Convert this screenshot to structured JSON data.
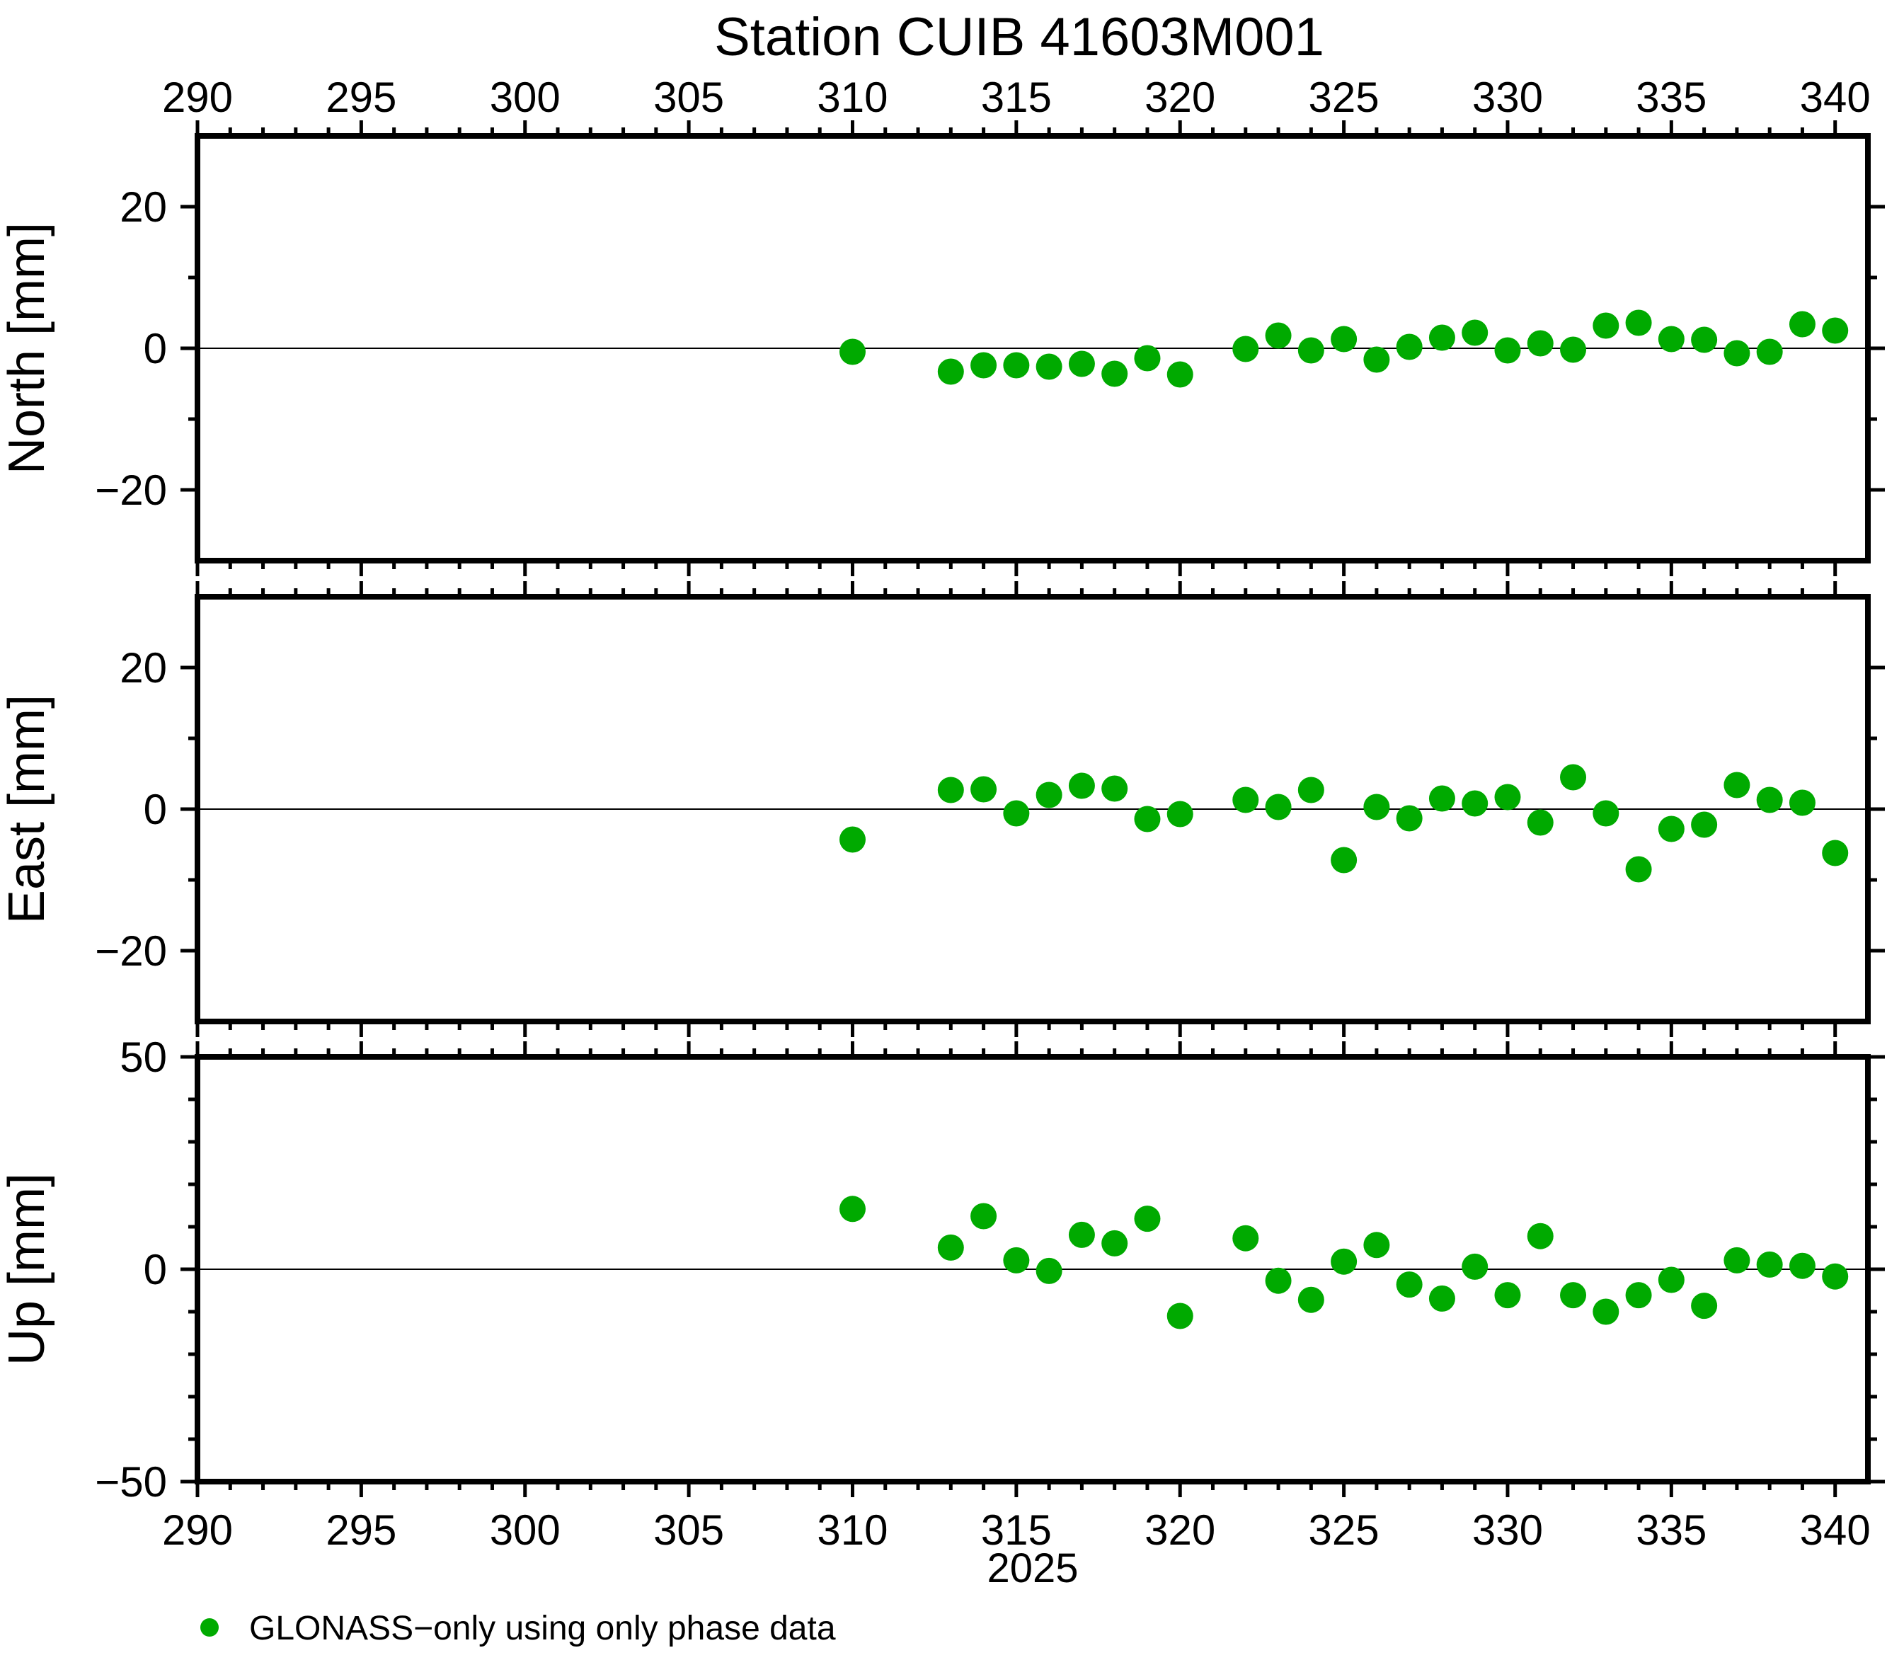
{
  "title": "Station CUIB 41603M001",
  "xlabel": "2025",
  "legend": {
    "label": "GLONASS−only using only phase data",
    "marker": "green-circle",
    "marker_color": "#00aa00"
  },
  "chart_data": {
    "type": "scatter",
    "title": "Station CUIB 41603M001",
    "xlabel": "2025",
    "x_axis": {
      "range": [
        290,
        341
      ],
      "major_ticks": [
        290,
        295,
        300,
        305,
        310,
        315,
        320,
        325,
        330,
        335,
        340
      ],
      "minor_step": 1,
      "labels_top": true,
      "labels_bottom": true
    },
    "grid": "zero-line-only",
    "marker_color": "#00aa00",
    "x_days": [
      310,
      313,
      314,
      315,
      316,
      317,
      318,
      319,
      320,
      322,
      323,
      324,
      325,
      326,
      327,
      328,
      329,
      330,
      331,
      332,
      333,
      334,
      335,
      336,
      337,
      338,
      339,
      340
    ],
    "panels": [
      {
        "ylabel": "North [mm]",
        "y_range": [
          -30,
          30
        ],
        "y_major_ticks": [
          20,
          0,
          -20
        ],
        "y_minor_step": 10,
        "values": [
          -0.5,
          -3.3,
          -2.4,
          -2.4,
          -2.6,
          -2.2,
          -3.6,
          -1.4,
          -3.7,
          -0.1,
          1.8,
          -0.3,
          1.3,
          -1.6,
          0.2,
          1.5,
          2.2,
          -0.3,
          0.7,
          -0.2,
          3.2,
          3.6,
          1.3,
          1.2,
          -0.7,
          -0.5,
          3.4,
          2.5
        ]
      },
      {
        "ylabel": "East [mm]",
        "y_range": [
          -30,
          30
        ],
        "y_major_ticks": [
          20,
          0,
          -20
        ],
        "y_minor_step": 10,
        "values": [
          -4.3,
          2.7,
          2.8,
          -0.6,
          2.0,
          3.3,
          2.9,
          -1.4,
          -0.7,
          1.3,
          0.3,
          2.7,
          -7.2,
          0.3,
          -1.3,
          1.5,
          0.8,
          1.7,
          -1.9,
          4.5,
          -0.6,
          -8.5,
          -2.8,
          -2.2,
          3.4,
          1.3,
          0.9,
          -6.2
        ]
      },
      {
        "ylabel": "Up [mm]",
        "y_range": [
          -50,
          50
        ],
        "y_major_ticks": [
          50,
          0,
          -50
        ],
        "y_minor_step": 10,
        "values": [
          14.2,
          5.1,
          12.5,
          2.1,
          -0.4,
          8.1,
          6.1,
          11.9,
          -11.0,
          7.3,
          -2.7,
          -7.2,
          1.8,
          5.7,
          -3.6,
          -6.9,
          0.6,
          -6.1,
          7.8,
          -6.1,
          -10.0,
          -6.1,
          -2.5,
          -8.6,
          2.1,
          1.1,
          0.8,
          -1.7
        ]
      }
    ]
  }
}
